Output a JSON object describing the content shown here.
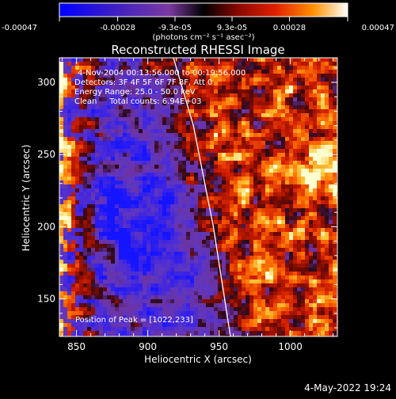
{
  "chart_data": {
    "type": "heatmap",
    "title": "Reconstructed RHESSI Image",
    "xlabel": "Heliocentric X (arcsec)",
    "ylabel": "Heliocentric Y (arcsec)",
    "xlim": [
      838,
      1033
    ],
    "ylim": [
      124,
      317
    ],
    "x_ticks": [
      850,
      900,
      950,
      1000
    ],
    "y_ticks": [
      150,
      200,
      250,
      300
    ],
    "colorbar": {
      "ticks": [
        -0.00047,
        -0.00028,
        -9.3e-05,
        9.3e-05,
        0.00028,
        0.00047
      ],
      "tick_labels": [
        "-0.00047",
        "-0.00028",
        "-9.3e-05",
        "9.3e-05",
        "0.00028",
        "0.00047"
      ],
      "units": "(photons cm⁻² s⁻¹ asec⁻²)",
      "range": [
        -0.00047,
        0.00047
      ],
      "colors": [
        "#0000ff",
        "#4020c0",
        "#6a3fb8",
        "#7a3aa0",
        "#000000",
        "#7a0a00",
        "#d01800",
        "#ff6000",
        "#ffc040",
        "#ffffff"
      ]
    },
    "annotations": {
      "time": "4-Nov-2004 00:13:56.000 to 00:19:56.000",
      "detectors": "Detectors: 3F 4F 5F 6F 7F 8F, Att 0",
      "energy": "Energy Range: 25.0 - 50.0 keV",
      "clean": "Clean     Total counts: 6.94E+03",
      "peak": "Position of Peak = [1022,233]"
    },
    "peak_position": [
      1022,
      233
    ],
    "limb_line": {
      "x": [
        918,
        932,
        946,
        958
      ],
      "y": [
        317,
        270,
        200,
        124
      ]
    },
    "grid": false,
    "legend": "none"
  },
  "footer": {
    "timestamp": "4-May-2022 19:24"
  }
}
